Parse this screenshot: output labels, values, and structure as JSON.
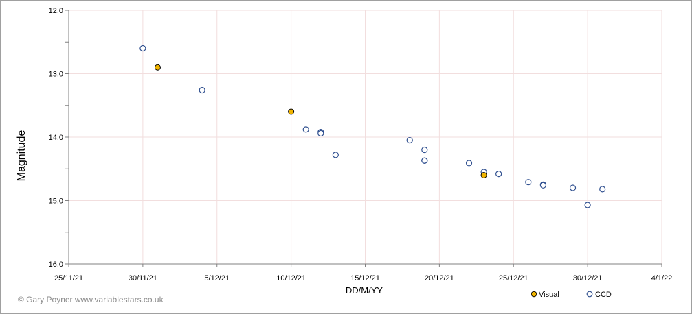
{
  "credit": "© Gary Poyner www.variablestars.co.uk",
  "colors": {
    "visual_fill": "#f0b400",
    "visual_stroke": "#000000",
    "ccd_stroke": "#2f4f8f",
    "grid": "#f2dede",
    "axis": "#808080"
  },
  "chart_data": {
    "type": "scatter",
    "title": "",
    "xlabel": "DD/M/YY",
    "ylabel": "Magnitude",
    "x_axis_type": "date",
    "xlim": [
      "2021-11-25",
      "2022-01-04"
    ],
    "x_ticks": [
      {
        "date": "2021-11-25",
        "label": "25/11/21"
      },
      {
        "date": "2021-11-30",
        "label": "30/11/21"
      },
      {
        "date": "2021-12-05",
        "label": "5/12/21"
      },
      {
        "date": "2021-12-10",
        "label": "10/12/21"
      },
      {
        "date": "2021-12-15",
        "label": "15/12/21"
      },
      {
        "date": "2021-12-20",
        "label": "20/12/21"
      },
      {
        "date": "2021-12-25",
        "label": "25/12/21"
      },
      {
        "date": "2021-12-30",
        "label": "30/12/21"
      },
      {
        "date": "2022-01-04",
        "label": "4/1/22"
      }
    ],
    "ylim": [
      12.0,
      16.0
    ],
    "y_inverted": true,
    "y_ticks": [
      {
        "value": 12.0,
        "label": "12.0"
      },
      {
        "value": 13.0,
        "label": "13.0"
      },
      {
        "value": 14.0,
        "label": "14.0"
      },
      {
        "value": 15.0,
        "label": "15.0"
      },
      {
        "value": 16.0,
        "label": "16.0"
      }
    ],
    "y_minor_ticks": [
      12.5,
      13.5,
      14.5,
      15.5
    ],
    "grid": true,
    "legend_position": "bottom-right",
    "series": [
      {
        "name": "Visual",
        "marker": "filled-circle",
        "points": [
          {
            "x": "2021-12-01",
            "y": 12.9
          },
          {
            "x": "2021-12-10",
            "y": 13.6
          },
          {
            "x": "2021-12-23",
            "y": 14.6
          }
        ]
      },
      {
        "name": "CCD",
        "marker": "open-circle",
        "points": [
          {
            "x": "2021-11-30",
            "y": 12.6
          },
          {
            "x": "2021-12-04",
            "y": 13.26
          },
          {
            "x": "2021-12-11",
            "y": 13.88
          },
          {
            "x": "2021-12-12",
            "y": 13.92
          },
          {
            "x": "2021-12-12",
            "y": 13.94
          },
          {
            "x": "2021-12-13",
            "y": 14.28
          },
          {
            "x": "2021-12-18",
            "y": 14.05
          },
          {
            "x": "2021-12-19",
            "y": 14.2
          },
          {
            "x": "2021-12-19",
            "y": 14.37
          },
          {
            "x": "2021-12-19",
            "y": 14.37
          },
          {
            "x": "2021-12-22",
            "y": 14.41
          },
          {
            "x": "2021-12-23",
            "y": 14.55
          },
          {
            "x": "2021-12-24",
            "y": 14.58
          },
          {
            "x": "2021-12-26",
            "y": 14.71
          },
          {
            "x": "2021-12-27",
            "y": 14.75
          },
          {
            "x": "2021-12-27",
            "y": 14.76
          },
          {
            "x": "2021-12-29",
            "y": 14.8
          },
          {
            "x": "2021-12-30",
            "y": 15.07
          },
          {
            "x": "2021-12-31",
            "y": 14.82
          }
        ]
      }
    ]
  }
}
